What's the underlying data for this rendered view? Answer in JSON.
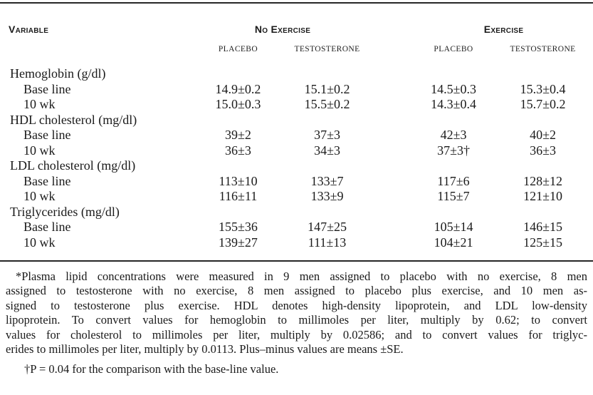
{
  "colors": {
    "background": "#ffffff",
    "text": "#1a1a1a",
    "rule": "#262626"
  },
  "table": {
    "header": {
      "variable_label": "Variable",
      "groups": [
        {
          "label": "No Exercise",
          "subcols": [
            "Placebo",
            "Testosterone"
          ]
        },
        {
          "label": "Exercise",
          "subcols": [
            "Placebo",
            "Testosterone"
          ]
        }
      ]
    },
    "sections": [
      {
        "name": "Hemoglobin (g/dl)",
        "rows": [
          {
            "label": "Base line",
            "values": [
              "14.9±0.2",
              "15.1±0.2",
              "14.5±0.3",
              "15.3±0.4"
            ]
          },
          {
            "label": "10 wk",
            "values": [
              "15.0±0.3",
              "15.5±0.2",
              "14.3±0.4",
              "15.7±0.2"
            ]
          }
        ]
      },
      {
        "name": "HDL cholesterol (mg/dl)",
        "rows": [
          {
            "label": "Base line",
            "values": [
              "39±2",
              "37±3",
              "42±3",
              "40±2"
            ]
          },
          {
            "label": "10 wk",
            "values": [
              "36±3",
              "34±3",
              "37±3†",
              "36±3"
            ]
          }
        ]
      },
      {
        "name": "LDL cholesterol (mg/dl)",
        "rows": [
          {
            "label": "Base line",
            "values": [
              "113±10",
              "133±7",
              "117±6",
              "128±12"
            ]
          },
          {
            "label": "10 wk",
            "values": [
              "116±11",
              "133±9",
              "115±7",
              "121±10"
            ]
          }
        ]
      },
      {
        "name": "Triglycerides (mg/dl)",
        "rows": [
          {
            "label": "Base line",
            "values": [
              "155±36",
              "147±25",
              "105±14",
              "146±15"
            ]
          },
          {
            "label": "10 wk",
            "values": [
              "139±27",
              "111±13",
              "104±21",
              "125±15"
            ]
          }
        ]
      }
    ]
  },
  "footnotes": {
    "main_lines": [
      "*Plasma lipid concentrations were measured in 9 men assigned to placebo with no exercise, 8 men",
      "assigned to testosterone with no exercise, 8 men assigned to placebo plus exercise, and 10 men as-",
      "signed to testosterone plus exercise. HDL denotes high-density lipoprotein, and LDL low-density",
      "lipoprotein. To convert values for hemoglobin to millimoles per liter, multiply by 0.62; to convert",
      "values for cholesterol to millimoles per liter, multiply by 0.02586; and to convert values for triglyc-",
      "erides to millimoles per liter, multiply by 0.0113. Plus–minus values are means ±SE."
    ],
    "dagger": "†P = 0.04 for the comparison with the base-line value."
  }
}
